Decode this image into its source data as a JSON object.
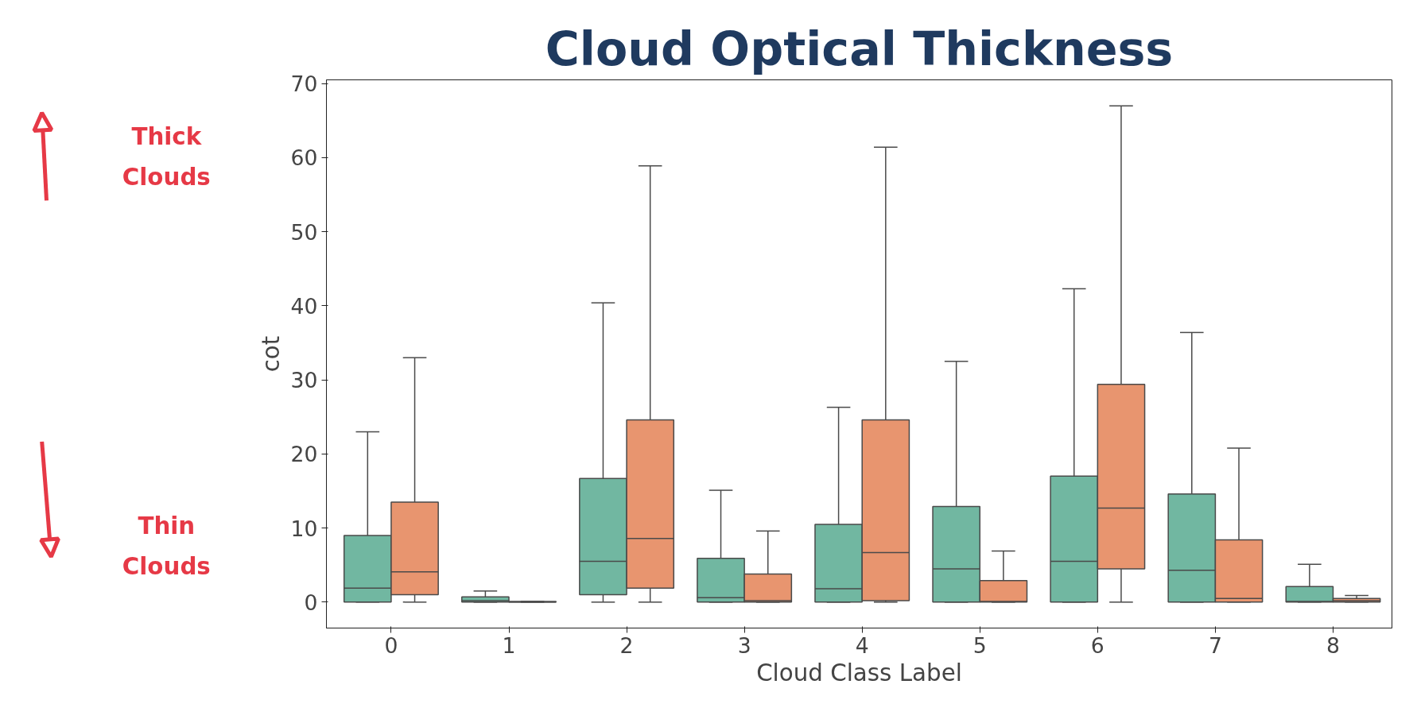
{
  "chart_data": {
    "type": "box",
    "title": "Cloud Optical Thickness",
    "xlabel": "Cloud Class Label",
    "ylabel": "cot",
    "categories": [
      "0",
      "1",
      "2",
      "3",
      "4",
      "5",
      "6",
      "7",
      "8"
    ],
    "ylim": [
      -3.5,
      70.5
    ],
    "yticks": [
      0,
      10,
      20,
      30,
      40,
      50,
      60,
      70
    ],
    "grid": false,
    "annotations": [
      "Thick Clouds",
      "Thin Clouds"
    ],
    "series": [
      {
        "color": "#71b7a1",
        "boxes": [
          {
            "low": 0,
            "q1": 0,
            "median": 1.9,
            "q3": 9.0,
            "high": 23.0
          },
          {
            "low": 0,
            "q1": 0,
            "median": 0.2,
            "q3": 0.7,
            "high": 1.5
          },
          {
            "low": 0,
            "q1": 1.0,
            "median": 5.5,
            "q3": 16.7,
            "high": 40.4
          },
          {
            "low": 0,
            "q1": 0,
            "median": 0.6,
            "q3": 5.9,
            "high": 15.1
          },
          {
            "low": 0,
            "q1": 0,
            "median": 1.8,
            "q3": 10.5,
            "high": 26.3
          },
          {
            "low": 0,
            "q1": 0,
            "median": 4.5,
            "q3": 12.9,
            "high": 32.5
          },
          {
            "low": 0,
            "q1": 0,
            "median": 5.5,
            "q3": 17.0,
            "high": 42.3
          },
          {
            "low": 0,
            "q1": 0,
            "median": 4.3,
            "q3": 14.6,
            "high": 36.4
          },
          {
            "low": 0,
            "q1": 0,
            "median": 0.1,
            "q3": 2.1,
            "high": 5.1
          }
        ]
      },
      {
        "color": "#e8956f",
        "boxes": [
          {
            "low": 0,
            "q1": 1.0,
            "median": 4.1,
            "q3": 13.5,
            "high": 33.0
          },
          {
            "low": 0,
            "q1": 0,
            "median": 0,
            "q3": 0.1,
            "high": 0.1
          },
          {
            "low": 0,
            "q1": 1.9,
            "median": 8.6,
            "q3": 24.6,
            "high": 58.9
          },
          {
            "low": 0,
            "q1": 0,
            "median": 0.2,
            "q3": 3.8,
            "high": 9.6
          },
          {
            "low": 0,
            "q1": 0.2,
            "median": 6.7,
            "q3": 24.6,
            "high": 61.4
          },
          {
            "low": 0,
            "q1": 0,
            "median": 0.1,
            "q3": 2.9,
            "high": 6.9
          },
          {
            "low": 0,
            "q1": 4.5,
            "median": 12.7,
            "q3": 29.4,
            "high": 67.0
          },
          {
            "low": 0,
            "q1": 0,
            "median": 0.5,
            "q3": 8.4,
            "high": 20.8
          },
          {
            "low": 0,
            "q1": 0,
            "median": 0.2,
            "q3": 0.5,
            "high": 0.9
          }
        ]
      }
    ]
  }
}
